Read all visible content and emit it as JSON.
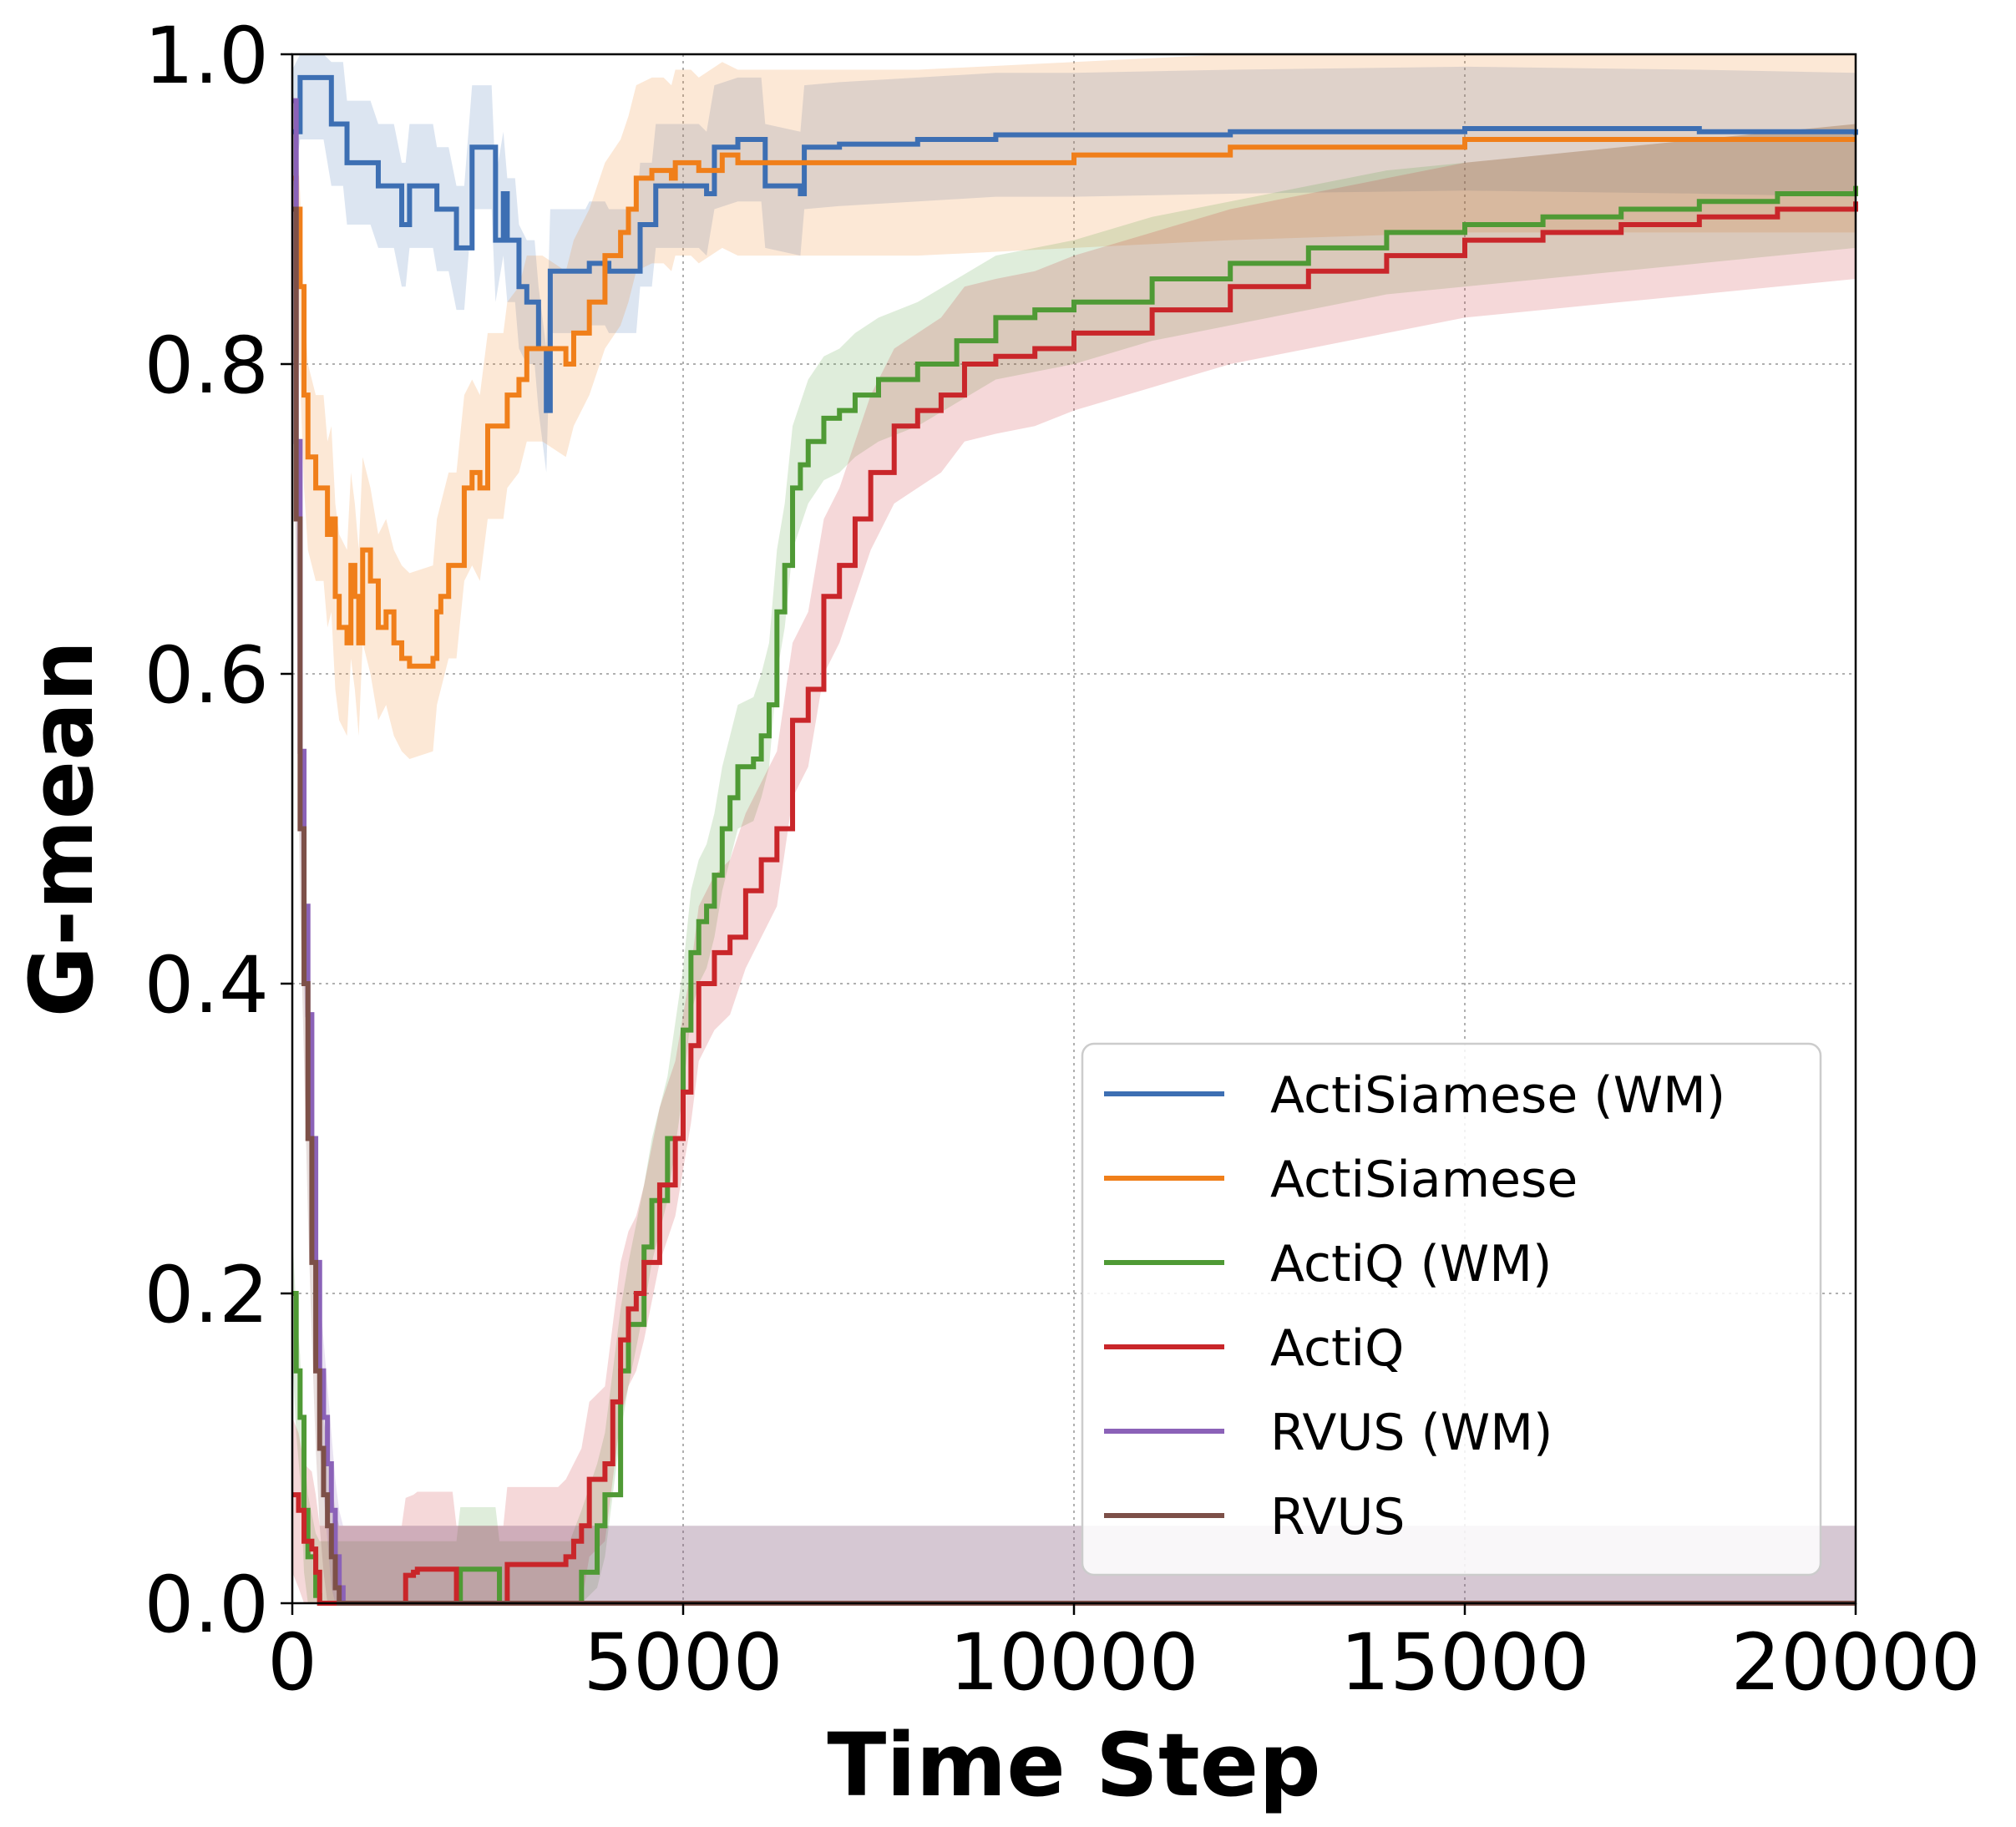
{
  "chart_data": {
    "type": "line",
    "title": "",
    "xlabel": "Time Step",
    "ylabel": "G-mean",
    "xlim": [
      0,
      20000
    ],
    "ylim": [
      0.0,
      1.0
    ],
    "grid": true,
    "legend_position": "lower-right",
    "x_ticks": [
      0,
      5000,
      10000,
      15000,
      20000
    ],
    "x_tick_labels": [
      "0",
      "5000",
      "10000",
      "15000",
      "20000"
    ],
    "y_ticks": [
      0.0,
      0.2,
      0.4,
      0.6,
      0.8,
      1.0
    ],
    "y_tick_labels": [
      "0.0",
      "0.2",
      "0.4",
      "0.6",
      "0.8",
      "1.0"
    ],
    "series": [
      {
        "name": "ActiSiamese (WM)",
        "color": "#3d6fb3",
        "band": 0.04,
        "points": [
          [
            0,
            0.95
          ],
          [
            100,
            0.985
          ],
          [
            400,
            0.985
          ],
          [
            500,
            0.955
          ],
          [
            650,
            0.955
          ],
          [
            700,
            0.93
          ],
          [
            1000,
            0.93
          ],
          [
            1100,
            0.915
          ],
          [
            1300,
            0.915
          ],
          [
            1400,
            0.89
          ],
          [
            1450,
            0.89
          ],
          [
            1500,
            0.915
          ],
          [
            1800,
            0.915
          ],
          [
            1850,
            0.9
          ],
          [
            2000,
            0.9
          ],
          [
            2100,
            0.875
          ],
          [
            2200,
            0.875
          ],
          [
            2300,
            0.94
          ],
          [
            2550,
            0.94
          ],
          [
            2600,
            0.88
          ],
          [
            2700,
            0.91
          ],
          [
            2750,
            0.88
          ],
          [
            2850,
            0.88
          ],
          [
            2900,
            0.85
          ],
          [
            3000,
            0.84
          ],
          [
            3100,
            0.84
          ],
          [
            3150,
            0.81
          ],
          [
            3250,
            0.77
          ],
          [
            3300,
            0.86
          ],
          [
            3700,
            0.86
          ],
          [
            3750,
            0.86
          ],
          [
            3800,
            0.865
          ],
          [
            4000,
            0.865
          ],
          [
            4050,
            0.86
          ],
          [
            4400,
            0.86
          ],
          [
            4450,
            0.89
          ],
          [
            4600,
            0.89
          ],
          [
            4650,
            0.915
          ],
          [
            5200,
            0.915
          ],
          [
            5300,
            0.91
          ],
          [
            5400,
            0.94
          ],
          [
            5700,
            0.945
          ],
          [
            6000,
            0.945
          ],
          [
            6050,
            0.915
          ],
          [
            6500,
            0.91
          ],
          [
            6550,
            0.94
          ],
          [
            7000,
            0.942
          ],
          [
            8000,
            0.945
          ],
          [
            9000,
            0.948
          ],
          [
            10000,
            0.948
          ],
          [
            12000,
            0.95
          ],
          [
            15000,
            0.952
          ],
          [
            18000,
            0.95
          ],
          [
            20000,
            0.948
          ]
        ]
      },
      {
        "name": "ActiSiamese",
        "color": "#f07f1a",
        "band": 0.06,
        "points": [
          [
            0,
            0.92
          ],
          [
            50,
            0.9
          ],
          [
            100,
            0.85
          ],
          [
            150,
            0.78
          ],
          [
            200,
            0.74
          ],
          [
            300,
            0.72
          ],
          [
            400,
            0.72
          ],
          [
            450,
            0.69
          ],
          [
            500,
            0.7
          ],
          [
            550,
            0.65
          ],
          [
            600,
            0.63
          ],
          [
            700,
            0.62
          ],
          [
            750,
            0.67
          ],
          [
            800,
            0.65
          ],
          [
            850,
            0.62
          ],
          [
            900,
            0.68
          ],
          [
            1000,
            0.66
          ],
          [
            1100,
            0.63
          ],
          [
            1200,
            0.64
          ],
          [
            1300,
            0.62
          ],
          [
            1400,
            0.61
          ],
          [
            1500,
            0.605
          ],
          [
            1800,
            0.61
          ],
          [
            1850,
            0.64
          ],
          [
            1900,
            0.65
          ],
          [
            2000,
            0.67
          ],
          [
            2100,
            0.67
          ],
          [
            2200,
            0.72
          ],
          [
            2300,
            0.73
          ],
          [
            2400,
            0.72
          ],
          [
            2500,
            0.76
          ],
          [
            2700,
            0.76
          ],
          [
            2750,
            0.78
          ],
          [
            2900,
            0.79
          ],
          [
            3000,
            0.81
          ],
          [
            3200,
            0.81
          ],
          [
            3500,
            0.8
          ],
          [
            3600,
            0.82
          ],
          [
            3800,
            0.84
          ],
          [
            4000,
            0.87
          ],
          [
            4200,
            0.885
          ],
          [
            4300,
            0.9
          ],
          [
            4400,
            0.92
          ],
          [
            4600,
            0.925
          ],
          [
            4750,
            0.925
          ],
          [
            4850,
            0.92
          ],
          [
            4900,
            0.93
          ],
          [
            5100,
            0.93
          ],
          [
            5200,
            0.925
          ],
          [
            5500,
            0.935
          ],
          [
            5700,
            0.93
          ],
          [
            6000,
            0.93
          ],
          [
            7000,
            0.93
          ],
          [
            8000,
            0.93
          ],
          [
            10000,
            0.935
          ],
          [
            12000,
            0.94
          ],
          [
            15000,
            0.945
          ],
          [
            18000,
            0.945
          ],
          [
            20000,
            0.945
          ]
        ]
      },
      {
        "name": "ActiQ (WM)",
        "color": "#4f9a35",
        "band": 0.04,
        "points": [
          [
            0,
            0.2
          ],
          [
            50,
            0.15
          ],
          [
            100,
            0.12
          ],
          [
            150,
            0.06
          ],
          [
            200,
            0.03
          ],
          [
            300,
            0.005
          ],
          [
            350,
            0.0
          ],
          [
            2100,
            0.0
          ],
          [
            2150,
            0.022
          ],
          [
            2600,
            0.022
          ],
          [
            2650,
            0.0
          ],
          [
            3500,
            0.0
          ],
          [
            3550,
            0.0
          ],
          [
            3700,
            0.02
          ],
          [
            3900,
            0.05
          ],
          [
            4000,
            0.07
          ],
          [
            4200,
            0.15
          ],
          [
            4300,
            0.18
          ],
          [
            4500,
            0.23
          ],
          [
            4600,
            0.26
          ],
          [
            4800,
            0.3
          ],
          [
            5000,
            0.37
          ],
          [
            5100,
            0.42
          ],
          [
            5200,
            0.44
          ],
          [
            5300,
            0.45
          ],
          [
            5400,
            0.47
          ],
          [
            5500,
            0.5
          ],
          [
            5600,
            0.52
          ],
          [
            5700,
            0.54
          ],
          [
            5900,
            0.545
          ],
          [
            6000,
            0.56
          ],
          [
            6100,
            0.58
          ],
          [
            6200,
            0.64
          ],
          [
            6300,
            0.67
          ],
          [
            6400,
            0.72
          ],
          [
            6500,
            0.735
          ],
          [
            6600,
            0.75
          ],
          [
            6800,
            0.765
          ],
          [
            7000,
            0.77
          ],
          [
            7200,
            0.78
          ],
          [
            7500,
            0.79
          ],
          [
            8000,
            0.8
          ],
          [
            8500,
            0.815
          ],
          [
            9000,
            0.83
          ],
          [
            9500,
            0.835
          ],
          [
            10000,
            0.84
          ],
          [
            11000,
            0.855
          ],
          [
            12000,
            0.865
          ],
          [
            13000,
            0.875
          ],
          [
            14000,
            0.885
          ],
          [
            15000,
            0.89
          ],
          [
            16000,
            0.895
          ],
          [
            17000,
            0.9
          ],
          [
            18000,
            0.905
          ],
          [
            19000,
            0.91
          ],
          [
            20000,
            0.915
          ]
        ]
      },
      {
        "name": "ActiQ",
        "color": "#c9262a",
        "band": 0.05,
        "points": [
          [
            0,
            0.07
          ],
          [
            80,
            0.06
          ],
          [
            150,
            0.04
          ],
          [
            250,
            0.035
          ],
          [
            300,
            0.02
          ],
          [
            350,
            0.0
          ],
          [
            1400,
            0.0
          ],
          [
            1450,
            0.018
          ],
          [
            1550,
            0.02
          ],
          [
            1600,
            0.022
          ],
          [
            2050,
            0.022
          ],
          [
            2100,
            0.0
          ],
          [
            2700,
            0.0
          ],
          [
            2750,
            0.025
          ],
          [
            3400,
            0.025
          ],
          [
            3500,
            0.03
          ],
          [
            3600,
            0.04
          ],
          [
            3700,
            0.05
          ],
          [
            3800,
            0.08
          ],
          [
            4000,
            0.09
          ],
          [
            4100,
            0.13
          ],
          [
            4200,
            0.17
          ],
          [
            4300,
            0.19
          ],
          [
            4400,
            0.2
          ],
          [
            4500,
            0.22
          ],
          [
            4700,
            0.27
          ],
          [
            4900,
            0.3
          ],
          [
            5000,
            0.33
          ],
          [
            5100,
            0.36
          ],
          [
            5200,
            0.4
          ],
          [
            5400,
            0.42
          ],
          [
            5600,
            0.43
          ],
          [
            5800,
            0.46
          ],
          [
            6000,
            0.48
          ],
          [
            6200,
            0.5
          ],
          [
            6400,
            0.57
          ],
          [
            6600,
            0.59
          ],
          [
            6800,
            0.65
          ],
          [
            7000,
            0.67
          ],
          [
            7200,
            0.7
          ],
          [
            7400,
            0.73
          ],
          [
            7700,
            0.76
          ],
          [
            8000,
            0.77
          ],
          [
            8300,
            0.78
          ],
          [
            8600,
            0.8
          ],
          [
            9000,
            0.805
          ],
          [
            9500,
            0.81
          ],
          [
            10000,
            0.82
          ],
          [
            11000,
            0.835
          ],
          [
            12000,
            0.85
          ],
          [
            13000,
            0.86
          ],
          [
            14000,
            0.87
          ],
          [
            15000,
            0.88
          ],
          [
            16000,
            0.885
          ],
          [
            17000,
            0.89
          ],
          [
            18000,
            0.895
          ],
          [
            19000,
            0.9
          ],
          [
            20000,
            0.905
          ]
        ]
      },
      {
        "name": "RVUS (WM)",
        "color": "#8b62b8",
        "band": 0.05,
        "points": [
          [
            0,
            0.97
          ],
          [
            50,
            0.75
          ],
          [
            100,
            0.55
          ],
          [
            150,
            0.45
          ],
          [
            200,
            0.38
          ],
          [
            250,
            0.3
          ],
          [
            300,
            0.22
          ],
          [
            350,
            0.15
          ],
          [
            400,
            0.12
          ],
          [
            450,
            0.09
          ],
          [
            500,
            0.06
          ],
          [
            550,
            0.03
          ],
          [
            600,
            0.01
          ],
          [
            650,
            0.0
          ],
          [
            20000,
            0.0
          ]
        ]
      },
      {
        "name": "RVUS",
        "color": "#7d5048",
        "band": 0.05,
        "points": [
          [
            0,
            0.9
          ],
          [
            50,
            0.7
          ],
          [
            100,
            0.5
          ],
          [
            150,
            0.4
          ],
          [
            200,
            0.3
          ],
          [
            250,
            0.22
          ],
          [
            300,
            0.15
          ],
          [
            350,
            0.1
          ],
          [
            400,
            0.07
          ],
          [
            450,
            0.05
          ],
          [
            500,
            0.03
          ],
          [
            550,
            0.01
          ],
          [
            600,
            0.0
          ],
          [
            20000,
            0.0
          ]
        ]
      }
    ]
  }
}
